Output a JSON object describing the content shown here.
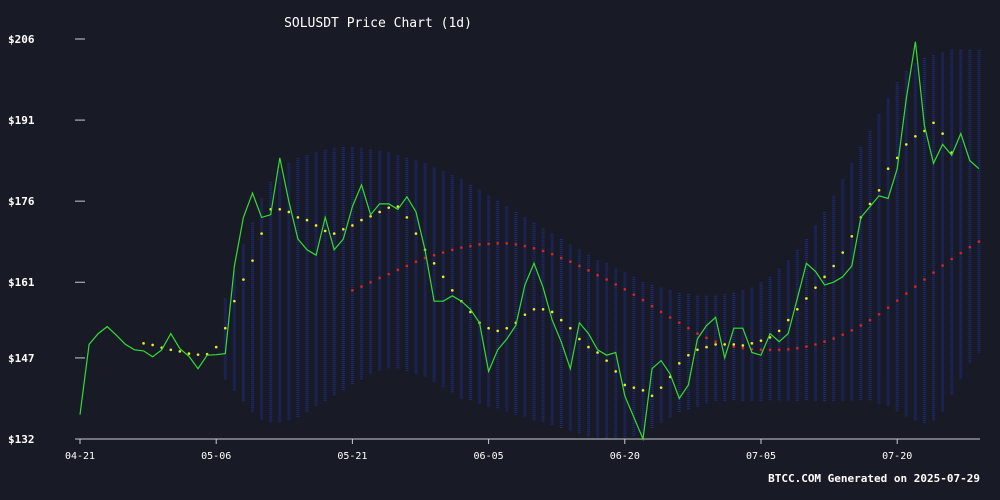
{
  "chart_data": {
    "type": "line",
    "title": "SOLUSDT Price Chart (1d)",
    "footer": "BTCC.COM Generated on 2025-07-29",
    "xlabel": "",
    "ylabel": "",
    "x_start": "2025-04-21",
    "x_ticks": [
      {
        "label": "04-21",
        "day": 0
      },
      {
        "label": "05-06",
        "day": 15
      },
      {
        "label": "05-21",
        "day": 30
      },
      {
        "label": "06-05",
        "day": 45
      },
      {
        "label": "06-20",
        "day": 60
      },
      {
        "label": "07-05",
        "day": 75
      },
      {
        "label": "07-20",
        "day": 90
      }
    ],
    "y_ticks": [
      {
        "label": "$206",
        "value": 206
      },
      {
        "label": "$191",
        "value": 191
      },
      {
        "label": "$176",
        "value": 176
      },
      {
        "label": "$161",
        "value": 161
      },
      {
        "label": "$147",
        "value": 147
      },
      {
        "label": "$132",
        "value": 132
      }
    ],
    "ylim": [
      132,
      206
    ],
    "xlim": [
      0,
      100
    ],
    "grid": false,
    "colors": {
      "background": "#181b26",
      "price": "#33dd33",
      "ma_short": "#eeee22",
      "ma_long": "#dd2222",
      "bands": "#1e2a7a",
      "axis": "#cccccc",
      "text": "#ffffff"
    },
    "series": [
      {
        "key": "price",
        "start_day": 0,
        "values": [
          136.5,
          149.5,
          151.5,
          152.8,
          151.2,
          149.5,
          148.5,
          148.3,
          147.2,
          148.5,
          151.5,
          148.7,
          147.3,
          145.0,
          147.5,
          147.6,
          147.8,
          164.0,
          173.0,
          177.5,
          173.0,
          173.5,
          184.0,
          176.0,
          169.0,
          167.0,
          166.0,
          173.0,
          167.0,
          169.0,
          175.0,
          179.0,
          173.5,
          175.5,
          175.5,
          174.5,
          176.8,
          174.0,
          167.0,
          157.5,
          157.5,
          158.5,
          157.5,
          156.0,
          153.5,
          144.5,
          148.5,
          150.5,
          153.0,
          160.5,
          164.5,
          160.0,
          154.0,
          150.0,
          145.0,
          153.5,
          151.5,
          148.5,
          147.5,
          148.0,
          140.0,
          136.0,
          132.0,
          145.0,
          146.5,
          144.0,
          139.5,
          142.0,
          150.5,
          153.0,
          154.5,
          147.0,
          152.5,
          152.5,
          148.0,
          147.5,
          151.5,
          150.0,
          151.5,
          158.0,
          164.5,
          163.0,
          160.5,
          161.0,
          162.0,
          164.0,
          173.0,
          175.0,
          177.0,
          176.5,
          182.0,
          195.0,
          205.5,
          190.0,
          183.0,
          186.5,
          184.5,
          188.5,
          183.5,
          182.0
        ]
      },
      {
        "key": "ma_short",
        "start_day": 7,
        "values": [
          149.7,
          149.4,
          148.9,
          148.5,
          148.2,
          147.8,
          147.6,
          147.7,
          149.0,
          152.5,
          157.5,
          161.5,
          165.0,
          170.0,
          174.5,
          174.5,
          174.0,
          173.0,
          172.5,
          171.5,
          170.5,
          170.0,
          170.8,
          171.5,
          172.5,
          173.2,
          174.0,
          174.8,
          175.0,
          173.0,
          170.0,
          167.0,
          164.5,
          162.0,
          159.5,
          157.5,
          155.5,
          153.5,
          152.5,
          152.0,
          152.5,
          153.5,
          155.0,
          156.0,
          156.0,
          155.5,
          154.0,
          152.5,
          150.5,
          149.0,
          148.0,
          146.5,
          144.5,
          142.0,
          141.5,
          141.0,
          140.0,
          141.5,
          143.5,
          146.0,
          147.5,
          148.5,
          149.0,
          149.5,
          149.5,
          149.5,
          149.3,
          149.7,
          150.2,
          150.8,
          152.0,
          154.0,
          156.0,
          158.0,
          160.0,
          162.0,
          164.0,
          166.5,
          169.5,
          173.0,
          175.5,
          178.0,
          182.0,
          184.0,
          186.5,
          188.0,
          189.0,
          190.5,
          188.5,
          185.0
        ]
      },
      {
        "key": "ma_long",
        "start_day": 30,
        "values": [
          159.5,
          160.2,
          161.0,
          161.8,
          162.5,
          163.3,
          164.0,
          164.8,
          165.5,
          166.0,
          166.5,
          167.0,
          167.4,
          167.7,
          168.0,
          168.1,
          168.2,
          168.2,
          168.0,
          167.7,
          167.3,
          166.8,
          166.2,
          165.5,
          164.8,
          164.0,
          163.2,
          162.3,
          161.5,
          160.6,
          159.7,
          158.7,
          157.7,
          156.6,
          155.5,
          154.5,
          153.5,
          152.5,
          151.5,
          150.7,
          150.0,
          149.5,
          149.1,
          148.8,
          148.6,
          148.5,
          148.5,
          148.5,
          148.6,
          148.8,
          149.1,
          149.5,
          150.0,
          150.6,
          151.3,
          152.1,
          153.0,
          154.0,
          155.1,
          156.3,
          157.6,
          158.9,
          160.2,
          161.5,
          162.8,
          164.1,
          165.3,
          166.4,
          167.5,
          168.5
        ]
      }
    ],
    "bands": {
      "start_day": 16,
      "upper": [
        158.0,
        163.0,
        168.0,
        172.0,
        176.5,
        179.5,
        181.5,
        183.0,
        184.0,
        184.5,
        185.0,
        185.5,
        185.8,
        186.0,
        186.0,
        185.8,
        185.5,
        185.2,
        185.0,
        184.5,
        184.0,
        183.5,
        183.0,
        182.2,
        181.5,
        180.8,
        180.0,
        179.0,
        178.0,
        177.0,
        176.0,
        175.0,
        174.0,
        173.0,
        172.0,
        171.0,
        170.0,
        169.0,
        168.0,
        167.0,
        166.0,
        165.0,
        164.5,
        163.5,
        162.8,
        162.0,
        161.0,
        160.5,
        160.0,
        159.5,
        159.0,
        158.8,
        158.5,
        158.5,
        158.5,
        158.8,
        159.0,
        159.5,
        160.0,
        161.0,
        162.0,
        163.5,
        165.0,
        167.0,
        169.0,
        171.5,
        174.0,
        177.0,
        180.0,
        183.0,
        186.0,
        189.0,
        192.0,
        195.0,
        198.0,
        200.0,
        201.5,
        202.5,
        203.0,
        203.5,
        204.0,
        204.0,
        204.0,
        204.0
      ],
      "lower": [
        143.0,
        141.0,
        139.0,
        137.0,
        135.5,
        135.0,
        135.0,
        135.5,
        136.0,
        137.0,
        138.0,
        139.0,
        140.0,
        141.0,
        142.0,
        143.0,
        144.0,
        144.5,
        145.0,
        145.0,
        144.5,
        144.0,
        143.5,
        142.5,
        141.5,
        140.5,
        139.5,
        139.0,
        138.5,
        138.0,
        137.5,
        137.0,
        136.5,
        136.0,
        135.5,
        135.0,
        134.5,
        134.0,
        133.5,
        133.0,
        132.5,
        132.3,
        132.0,
        132.0,
        132.0,
        132.5,
        133.0,
        134.0,
        135.0,
        136.0,
        137.0,
        137.5,
        138.0,
        138.5,
        139.0,
        139.0,
        139.0,
        139.0,
        139.0,
        139.0,
        139.0,
        139.0,
        139.0,
        139.0,
        139.0,
        139.0,
        139.0,
        139.0,
        139.0,
        139.0,
        139.0,
        139.0,
        138.5,
        138.0,
        137.0,
        136.0,
        135.5,
        135.0,
        135.5,
        137.0,
        140.0,
        143.0,
        146.0,
        148.0
      ]
    }
  }
}
